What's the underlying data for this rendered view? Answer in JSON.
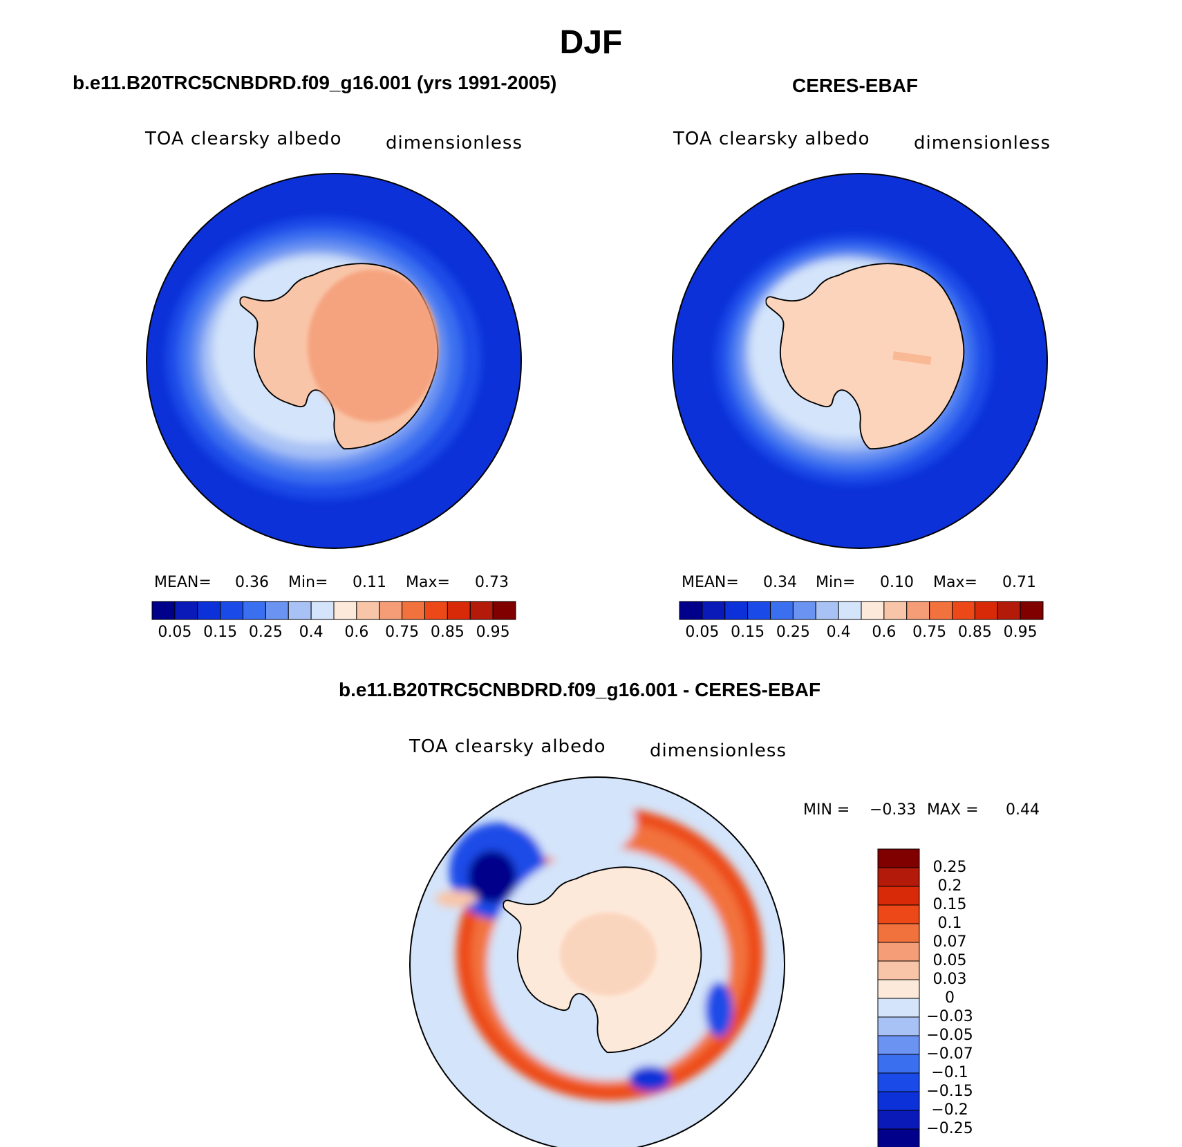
{
  "figure": {
    "title": "DJF"
  },
  "panels": [
    {
      "title": "b.e11.B20TRC5CNBDRD.f09_g16.001 (yrs 1991-2005)",
      "variable": "TOA clearsky albedo",
      "units": "dimensionless",
      "stats": {
        "mean_label": "MEAN=",
        "mean": "0.36",
        "min_label": "Min=",
        "min": "0.11",
        "max_label": "Max=",
        "max": "0.73"
      }
    },
    {
      "title": "CERES-EBAF",
      "variable": "TOA clearsky albedo",
      "units": "dimensionless",
      "stats": {
        "mean_label": "MEAN=",
        "mean": "0.34",
        "min_label": "Min=",
        "min": "0.10",
        "max_label": "Max=",
        "max": "0.71"
      }
    },
    {
      "title": "b.e11.B20TRC5CNBDRD.f09_g16.001 - CERES-EBAF",
      "variable": "TOA clearsky albedo",
      "units": "dimensionless",
      "stats": {
        "min_label": "MIN =",
        "min": "−0.33",
        "max_label": "MAX =",
        "max": "0.44"
      }
    }
  ],
  "colorbars": {
    "absolute": {
      "colors": [
        "#00008b",
        "#0a1ab8",
        "#0c31d8",
        "#1a4be8",
        "#3a6ff0",
        "#6b93f2",
        "#a9c2f5",
        "#d4e4fa",
        "#fde9da",
        "#f9c5a8",
        "#f59d77",
        "#f2723e",
        "#ed4818",
        "#d82a08",
        "#b31a0a",
        "#800000"
      ],
      "tick_labels": [
        "0.05",
        "0.15",
        "0.25",
        "0.4",
        "0.6",
        "0.75",
        "0.85",
        "0.95"
      ]
    },
    "difference": {
      "colors": [
        "#800000",
        "#b31a0a",
        "#d82a08",
        "#ed4818",
        "#f2723e",
        "#f59d77",
        "#f9c5a8",
        "#fde9da",
        "#d4e4fa",
        "#a9c2f5",
        "#6b93f2",
        "#3a6ff0",
        "#1a4be8",
        "#0c31d8",
        "#0a1ab8",
        "#00008b"
      ],
      "tick_labels": [
        "0.25",
        "0.2",
        "0.15",
        "0.1",
        "0.07",
        "0.05",
        "0.03",
        "0",
        "−0.03",
        "−0.05",
        "−0.07",
        "−0.1",
        "−0.15",
        "−0.2",
        "−0.25"
      ]
    }
  },
  "map_colors": {
    "ocean_dark": "#0c31d8",
    "coastline": "#000000"
  }
}
